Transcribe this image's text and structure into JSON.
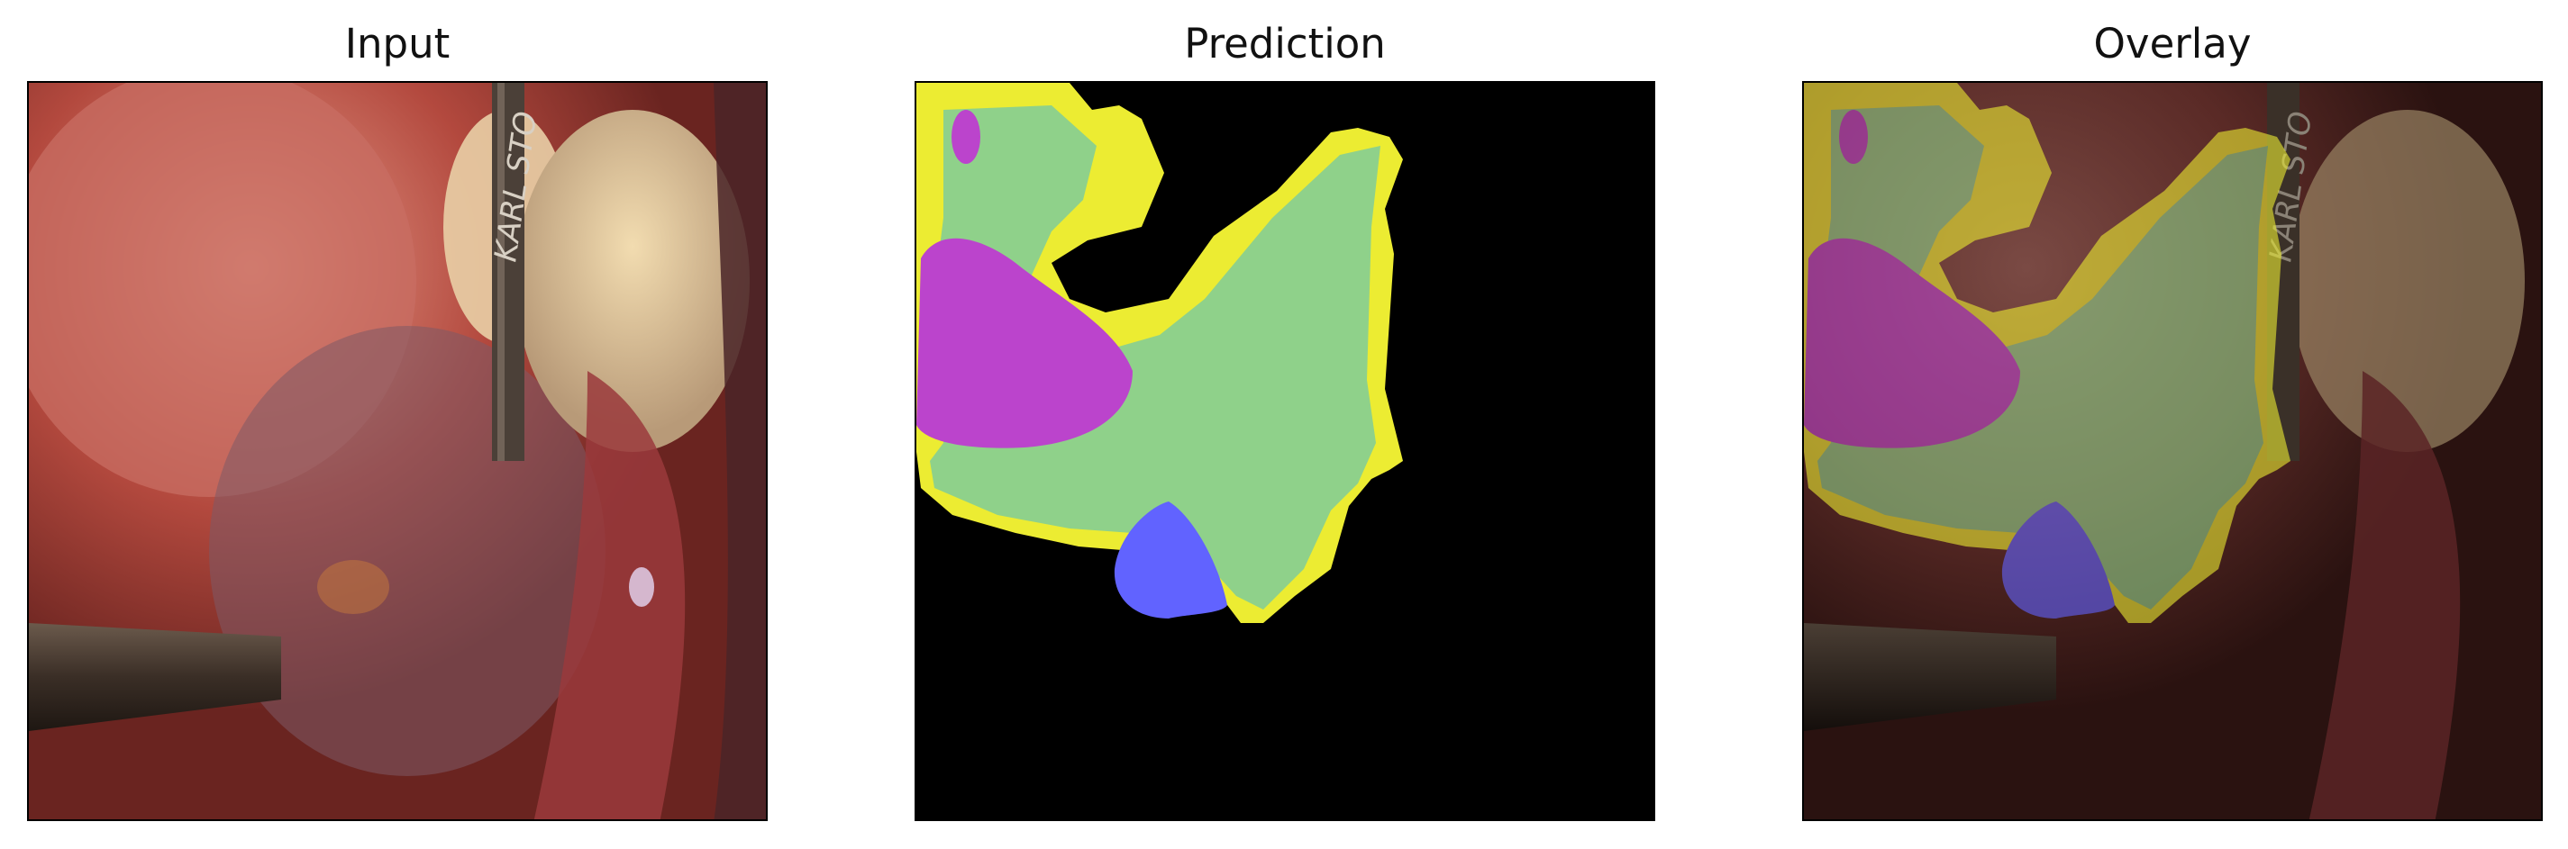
{
  "panels": {
    "input": {
      "title": "Input",
      "instrument_text": "KARL STO"
    },
    "prediction": {
      "title": "Prediction"
    },
    "overlay": {
      "title": "Overlay",
      "instrument_text": "KARL STO"
    }
  },
  "colors": {
    "background_mask": "#000000",
    "class_yellow": "#ecec32",
    "class_green": "#8fd18a",
    "class_magenta": "#bb44cc",
    "class_blue": "#6163ff"
  }
}
